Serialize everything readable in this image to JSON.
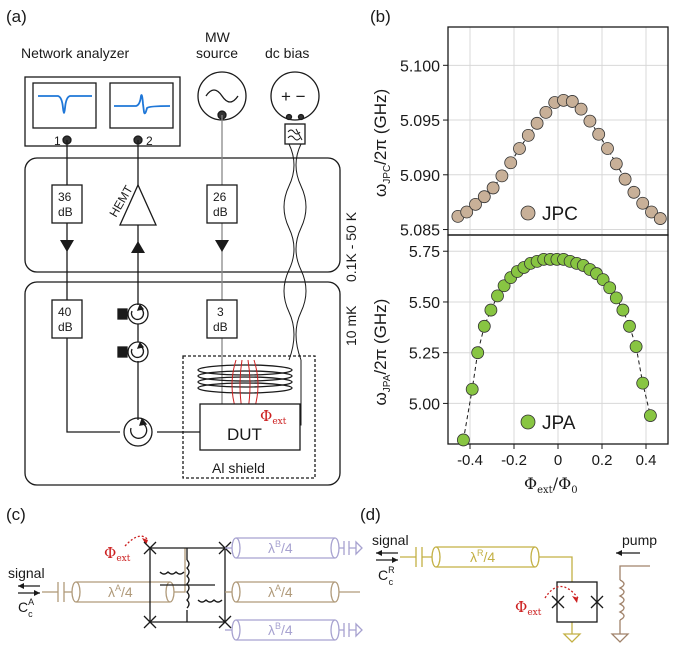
{
  "panel_labels": {
    "a": "(a)",
    "b": "(b)",
    "c": "(c)",
    "d": "(d)"
  },
  "panel_a": {
    "network_analyzer": "Network analyzer",
    "mw_source_line1": "MW",
    "mw_source_line2": "source",
    "dc_bias": "dc bias",
    "port1": "1",
    "port2": "2",
    "hemt": "HEMT",
    "att_36_num": "36",
    "att_26_num": "26",
    "att_40_num": "40",
    "att_3_num": "3",
    "db": "dB",
    "stage_top": "0.1K - 50 K",
    "stage_bottom": "10 mK",
    "dut": "DUT",
    "phi": "Φ",
    "phi_sub": "ext",
    "shield": "Al shield",
    "bias_sign": "+ −"
  },
  "panel_c": {
    "signal": "signal",
    "cap": "C",
    "cap_sup": "A",
    "cap_sub": "c",
    "phi": "Φ",
    "phi_sub": "ext",
    "res_a_left": "λ",
    "res_a_left_sup": "A",
    "res_a_left_den": "/4",
    "res_a_right": "λ",
    "res_a_right_sup": "A",
    "res_a_right_den": "/4",
    "res_b_top": "λ",
    "res_b_top_sup": "B",
    "res_b_top_den": "/4",
    "res_b_bot": "λ",
    "res_b_bot_sup": "B",
    "res_b_bot_den": "/4"
  },
  "panel_d": {
    "signal": "signal",
    "pump": "pump",
    "cap": "C",
    "cap_sup": "R",
    "cap_sub": "c",
    "res": "λ",
    "res_sup": "R",
    "res_den": "/4",
    "phi": "Φ",
    "phi_sub": "ext"
  },
  "chart_data": [
    {
      "type": "scatter",
      "legend": "JPC",
      "legend_position": "bottom-center",
      "ylabel": "ω",
      "ylabel_sub": "JPC",
      "ylabel_rest": "/2π (GHz)",
      "ylim": [
        5.0845,
        5.1035
      ],
      "yticks": [
        "5.085",
        "5.090",
        "5.095",
        "5.100"
      ],
      "xlim": [
        -0.5,
        0.5
      ],
      "grid": true,
      "marker_color": "#c8b098",
      "x": [
        -0.455,
        -0.415,
        -0.375,
        -0.335,
        -0.295,
        -0.255,
        -0.215,
        -0.175,
        -0.135,
        -0.095,
        -0.055,
        -0.015,
        0.025,
        0.065,
        0.105,
        0.145,
        0.185,
        0.225,
        0.265,
        0.305,
        0.345,
        0.385,
        0.425,
        0.465
      ],
      "y": [
        5.0862,
        5.0866,
        5.0873,
        5.088,
        5.0888,
        5.0899,
        5.0911,
        5.0924,
        5.0936,
        5.0947,
        5.0957,
        5.0966,
        5.0968,
        5.0967,
        5.096,
        5.0949,
        5.0937,
        5.0924,
        5.091,
        5.0896,
        5.0884,
        5.0874,
        5.0866,
        5.086
      ]
    },
    {
      "type": "scatter",
      "legend": "JPA",
      "legend_position": "bottom-center",
      "ylabel": "ω",
      "ylabel_sub": "JPA",
      "ylabel_rest": "/2π (GHz)",
      "xlabel": "Φ",
      "xlabel_sub": "ext",
      "xlabel_rest": "/Φ",
      "xlabel_sub2": "0",
      "ylim": [
        4.8,
        5.83
      ],
      "yticks": [
        "5.00",
        "5.25",
        "5.50",
        "5.75"
      ],
      "xticks": [
        "-0.4",
        "-0.2",
        "0",
        "0.2",
        "0.4"
      ],
      "xtick_values": [
        -0.4,
        -0.2,
        0,
        0.2,
        0.4
      ],
      "xlim": [
        -0.5,
        0.5
      ],
      "grid": true,
      "marker_color": "#88c542",
      "x": [
        -0.43,
        -0.39,
        -0.365,
        -0.335,
        -0.305,
        -0.275,
        -0.245,
        -0.215,
        -0.185,
        -0.155,
        -0.125,
        -0.095,
        -0.065,
        -0.035,
        -0.005,
        0.025,
        0.055,
        0.085,
        0.115,
        0.145,
        0.175,
        0.205,
        0.235,
        0.265,
        0.295,
        0.325,
        0.355,
        0.385,
        0.42
      ],
      "y": [
        4.82,
        5.07,
        5.25,
        5.38,
        5.46,
        5.53,
        5.58,
        5.62,
        5.65,
        5.67,
        5.69,
        5.7,
        5.71,
        5.71,
        5.71,
        5.71,
        5.7,
        5.69,
        5.68,
        5.66,
        5.64,
        5.61,
        5.57,
        5.52,
        5.46,
        5.38,
        5.28,
        5.1,
        4.94
      ]
    }
  ]
}
